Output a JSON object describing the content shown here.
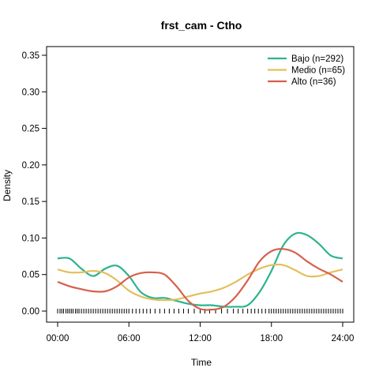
{
  "chart_data": {
    "type": "line",
    "title": "frst_cam - Ctho",
    "xlabel": "Time",
    "ylabel": "Density",
    "xlim": [
      0,
      24
    ],
    "ylim": [
      0,
      0.35
    ],
    "x_ticks": [
      "00:00",
      "06:00",
      "12:00",
      "18:00",
      "24:00"
    ],
    "y_ticks": [
      "0.00",
      "0.05",
      "0.10",
      "0.15",
      "0.20",
      "0.25",
      "0.30",
      "0.35"
    ],
    "legend_position": "top-right",
    "series": [
      {
        "name": "Bajo (n=292)",
        "color": "#2CB38E",
        "x": [
          0,
          1,
          2,
          3,
          4,
          5,
          6,
          7,
          8,
          9,
          10,
          11,
          12,
          13,
          14,
          15,
          16,
          17,
          18,
          19,
          20,
          21,
          22,
          23,
          24
        ],
        "y": [
          0.072,
          0.072,
          0.058,
          0.048,
          0.058,
          0.062,
          0.048,
          0.026,
          0.018,
          0.018,
          0.014,
          0.01,
          0.008,
          0.008,
          0.006,
          0.006,
          0.008,
          0.026,
          0.055,
          0.09,
          0.106,
          0.104,
          0.092,
          0.076,
          0.072
        ]
      },
      {
        "name": "Medio (n=65)",
        "color": "#E3BF5C",
        "x": [
          0,
          1,
          2,
          3,
          4,
          5,
          6,
          7,
          8,
          9,
          10,
          11,
          12,
          13,
          14,
          15,
          16,
          17,
          18,
          19,
          20,
          21,
          22,
          23,
          24
        ],
        "y": [
          0.057,
          0.053,
          0.053,
          0.055,
          0.052,
          0.042,
          0.028,
          0.02,
          0.016,
          0.015,
          0.016,
          0.02,
          0.024,
          0.027,
          0.032,
          0.04,
          0.05,
          0.058,
          0.063,
          0.063,
          0.056,
          0.048,
          0.048,
          0.053,
          0.057
        ]
      },
      {
        "name": "Alto (n=36)",
        "color": "#D6604D",
        "x": [
          0,
          1,
          2,
          3,
          4,
          5,
          6,
          7,
          8,
          9,
          10,
          11,
          12,
          13,
          14,
          15,
          16,
          17,
          18,
          19,
          20,
          21,
          22,
          23,
          24
        ],
        "y": [
          0.04,
          0.034,
          0.03,
          0.027,
          0.027,
          0.034,
          0.046,
          0.052,
          0.053,
          0.05,
          0.034,
          0.014,
          0.003,
          0.002,
          0.006,
          0.02,
          0.042,
          0.068,
          0.082,
          0.085,
          0.08,
          0.068,
          0.058,
          0.05,
          0.04
        ]
      }
    ],
    "rug": [
      0.0,
      0.2,
      0.35,
      0.5,
      0.7,
      0.85,
      1.0,
      1.15,
      1.3,
      1.5,
      1.65,
      1.8,
      2.0,
      2.2,
      2.4,
      2.6,
      2.8,
      3.0,
      3.2,
      3.4,
      3.6,
      3.8,
      4.0,
      4.2,
      4.4,
      4.6,
      4.8,
      5.0,
      5.2,
      5.4,
      5.6,
      5.8,
      6.0,
      6.3,
      6.6,
      6.9,
      7.2,
      7.5,
      7.8,
      8.2,
      8.6,
      9.0,
      9.4,
      9.8,
      10.2,
      10.6,
      11.0,
      11.5,
      12.0,
      12.4,
      12.8,
      13.3,
      13.8,
      14.3,
      14.8,
      15.2,
      15.6,
      16.0,
      16.3,
      16.6,
      16.9,
      17.2,
      17.5,
      17.8,
      18.0,
      18.2,
      18.4,
      18.6,
      18.8,
      19.0,
      19.2,
      19.4,
      19.6,
      19.8,
      20.0,
      20.2,
      20.4,
      20.6,
      20.8,
      21.0,
      21.2,
      21.4,
      21.6,
      21.8,
      22.0,
      22.2,
      22.4,
      22.6,
      22.8,
      23.0,
      23.2,
      23.4,
      23.6,
      23.8,
      24.0
    ]
  }
}
